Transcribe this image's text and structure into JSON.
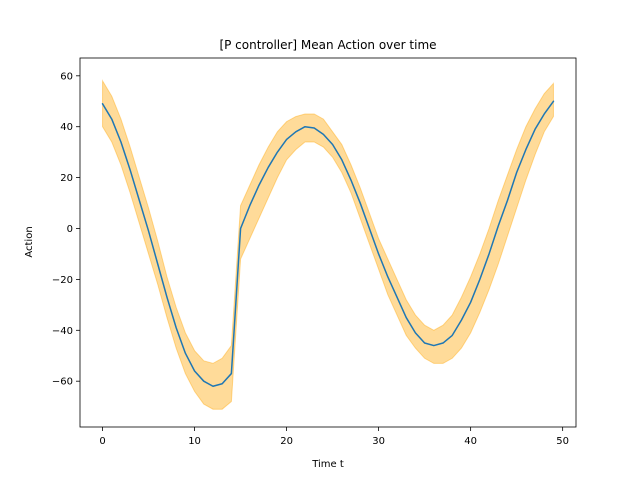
{
  "chart_data": {
    "type": "line",
    "title": "[P controller] Mean Action over time",
    "xlabel": "Time t",
    "ylabel": "Action",
    "xlim": [
      -2.45,
      51.45
    ],
    "ylim": [
      -78,
      67
    ],
    "xticks": [
      0,
      10,
      20,
      30,
      40,
      50
    ],
    "yticks": [
      -60,
      -40,
      -20,
      0,
      20,
      40,
      60
    ],
    "grid": false,
    "legend": "none",
    "series": [
      {
        "color": "#1f77b4",
        "band_color": "#ffa500",
        "x": [
          0,
          1,
          2,
          3,
          4,
          5,
          6,
          7,
          8,
          9,
          10,
          11,
          12,
          13,
          14,
          15,
          16,
          17,
          18,
          19,
          20,
          21,
          22,
          23,
          24,
          25,
          26,
          27,
          28,
          29,
          30,
          31,
          32,
          33,
          34,
          35,
          36,
          37,
          38,
          39,
          40,
          41,
          42,
          43,
          44,
          45,
          46,
          47,
          48,
          49
        ],
        "mean": [
          49,
          43,
          34,
          23,
          11,
          -1,
          -14,
          -27,
          -39,
          -49,
          -56,
          -60,
          -62,
          -61,
          -57,
          0,
          9,
          17,
          24,
          30,
          35,
          38,
          40,
          39.5,
          37,
          33,
          27,
          19,
          10,
          0,
          -10,
          -19,
          -27,
          -35,
          -41,
          -45,
          -46,
          -45,
          -42,
          -36,
          -29,
          -20,
          -10,
          1,
          11,
          22,
          31,
          39,
          45,
          50
        ],
        "lower": [
          40,
          34,
          25,
          14,
          2,
          -10,
          -22,
          -35,
          -47,
          -57,
          -64,
          -69,
          -71,
          -71,
          -68,
          -12,
          -4,
          4,
          12,
          20,
          27,
          31,
          34,
          34,
          32,
          28,
          22,
          14,
          4,
          -6,
          -16,
          -26,
          -34,
          -42,
          -47,
          -51,
          -53,
          -53,
          -51,
          -47,
          -41,
          -33,
          -24,
          -14,
          -3,
          8,
          19,
          29,
          38,
          44
        ],
        "upper": [
          58,
          52,
          43,
          32,
          20,
          8,
          -5,
          -19,
          -31,
          -41,
          -48,
          -52,
          -53,
          -51,
          -46,
          9,
          17,
          25,
          32,
          38,
          42,
          44,
          45,
          45,
          43,
          38,
          33,
          25,
          16,
          6,
          -4,
          -12,
          -20,
          -28,
          -34,
          -38,
          -40,
          -38,
          -34,
          -27,
          -19,
          -10,
          0,
          11,
          21,
          31,
          40,
          47,
          53,
          57
        ]
      }
    ]
  }
}
